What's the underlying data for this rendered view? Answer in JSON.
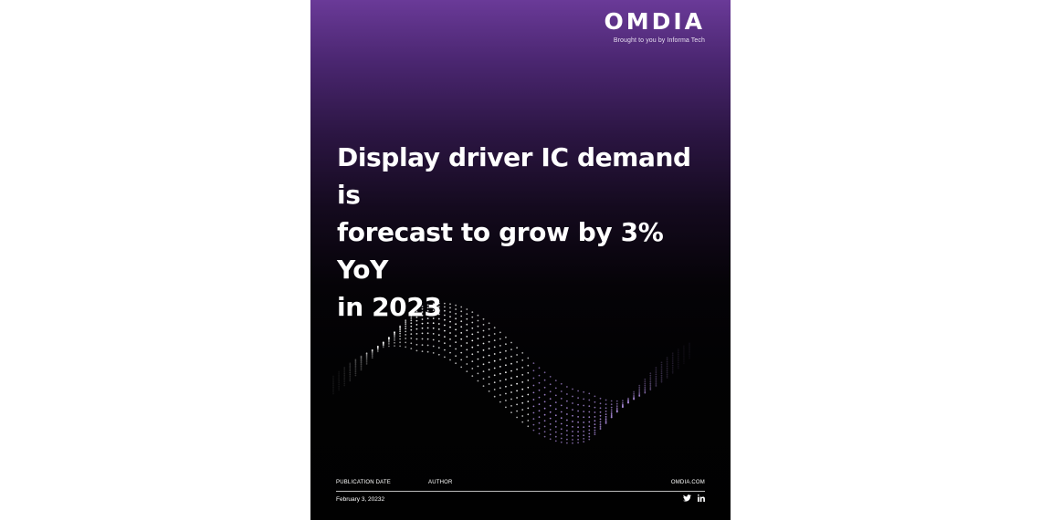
{
  "brand": {
    "logo_text": "OMDIA",
    "tagline": "Brought to you by Informa Tech"
  },
  "headline": {
    "line1": "Display driver IC demand is",
    "line2": "forecast to grow by 3% YoY",
    "line3": "in 2023"
  },
  "footer": {
    "publication_date_label": "PUBLICATION DATE",
    "publication_date_value": "February 3, 20232",
    "author_label": "AUTHOR",
    "website_label": "OMDIA.COM",
    "social_icons": [
      "twitter-icon",
      "linkedin-icon"
    ]
  },
  "colors": {
    "background_top": "#6a3a98",
    "background_bottom": "#010101",
    "text": "#ffffff",
    "wave_accent": "#a98ad8"
  }
}
